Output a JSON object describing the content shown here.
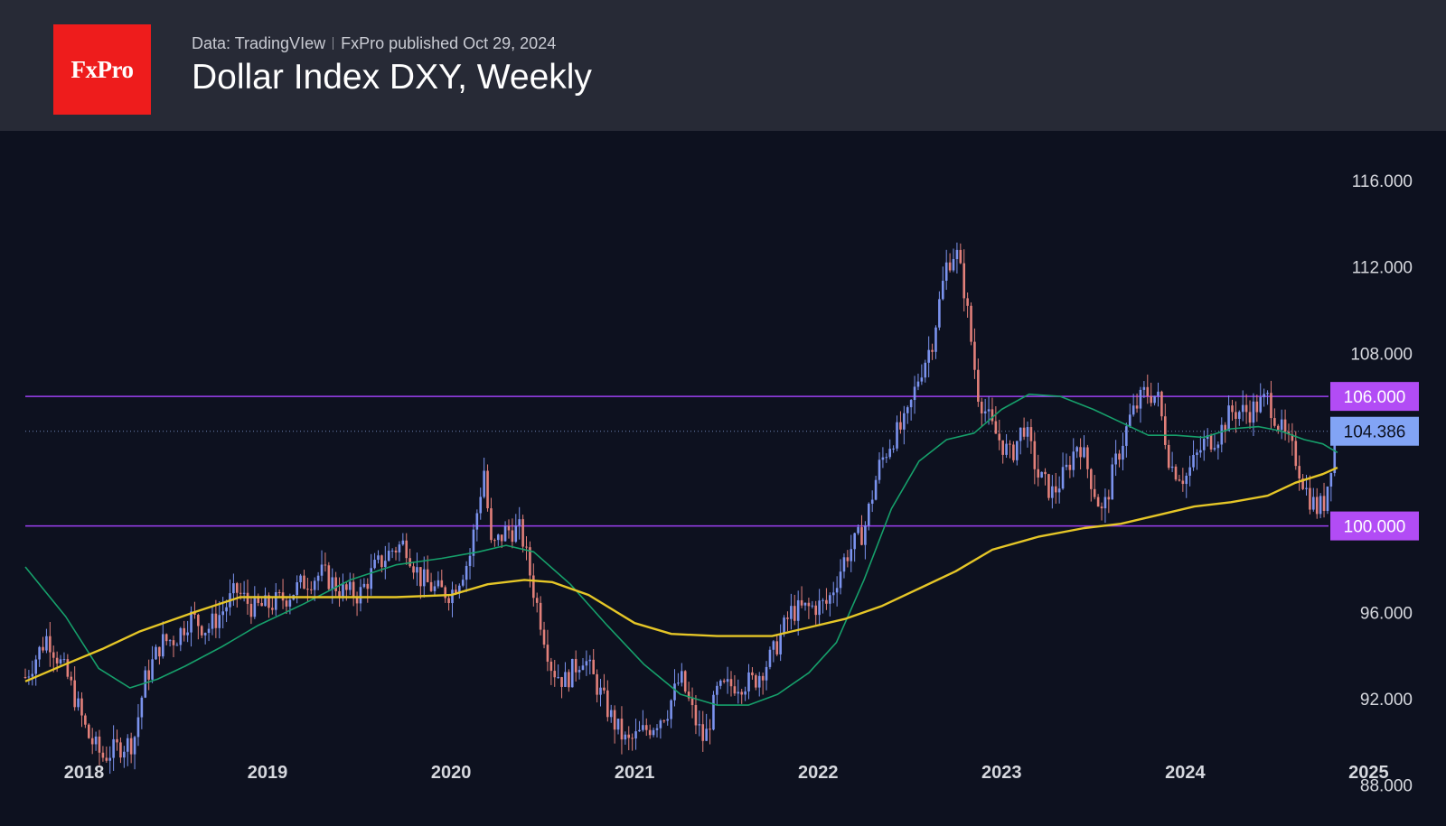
{
  "header": {
    "logo_text": "FxPro",
    "source": "Data: TradingVIew",
    "published": "FxPro published Oct 29, 2024",
    "title": "Dollar Index DXY, Weekly"
  },
  "colors": {
    "background": "#0d111f",
    "header_bg": "#272a36",
    "logo_red": "#ee1c1c",
    "candle_up": "#7b93ee",
    "candle_down": "#e2807a",
    "ma_fast": "#16a06b",
    "ma_slow": "#e5c627",
    "level_line": "#9c40f0",
    "level_tag": "#b24cf5",
    "last_price_tag": "#82a4f5"
  },
  "chart_data": {
    "type": "candlestick",
    "title": "Dollar Index DXY, Weekly",
    "x_range": [
      2017.68,
      2025.2
    ],
    "ylim": [
      86.1,
      118.3
    ],
    "y_ticks": [
      "116.000",
      "112.000",
      "108.000",
      "96.000",
      "92.000",
      "88.000"
    ],
    "x_ticks": [
      {
        "label": "2018",
        "t": 2018.0
      },
      {
        "label": "2019",
        "t": 2019.0
      },
      {
        "label": "2020",
        "t": 2020.0
      },
      {
        "label": "2021",
        "t": 2021.0
      },
      {
        "label": "2022",
        "t": 2022.0
      },
      {
        "label": "2023",
        "t": 2023.0
      },
      {
        "label": "2024",
        "t": 2024.0
      },
      {
        "label": "2025",
        "t": 2025.0
      }
    ],
    "horizontal_levels": [
      {
        "value": 106.0,
        "label": "106.000"
      },
      {
        "value": 100.0,
        "label": "100.000"
      }
    ],
    "last_price": {
      "value": 104.386,
      "label": "104.386"
    },
    "close_path": [
      [
        2017.68,
        93.0
      ],
      [
        2017.8,
        94.9
      ],
      [
        2017.92,
        92.8
      ],
      [
        2018.02,
        90.3
      ],
      [
        2018.1,
        89.3
      ],
      [
        2018.2,
        89.8
      ],
      [
        2018.27,
        90.0
      ],
      [
        2018.33,
        92.8
      ],
      [
        2018.42,
        94.6
      ],
      [
        2018.5,
        94.8
      ],
      [
        2018.58,
        95.8
      ],
      [
        2018.67,
        95.2
      ],
      [
        2018.75,
        96.0
      ],
      [
        2018.83,
        97.0
      ],
      [
        2018.92,
        96.2
      ],
      [
        2019.0,
        96.3
      ],
      [
        2019.1,
        96.7
      ],
      [
        2019.2,
        97.4
      ],
      [
        2019.3,
        97.8
      ],
      [
        2019.4,
        97.0
      ],
      [
        2019.5,
        96.8
      ],
      [
        2019.58,
        98.0
      ],
      [
        2019.68,
        98.9
      ],
      [
        2019.75,
        99.2
      ],
      [
        2019.83,
        97.6
      ],
      [
        2019.92,
        97.0
      ],
      [
        2020.0,
        96.9
      ],
      [
        2020.1,
        98.5
      ],
      [
        2020.18,
        102.6
      ],
      [
        2020.22,
        98.9
      ],
      [
        2020.3,
        99.8
      ],
      [
        2020.38,
        99.8
      ],
      [
        2020.45,
        97.0
      ],
      [
        2020.55,
        93.4
      ],
      [
        2020.62,
        92.8
      ],
      [
        2020.72,
        94.0
      ],
      [
        2020.8,
        92.5
      ],
      [
        2020.88,
        91.0
      ],
      [
        2020.96,
        89.9
      ],
      [
        2021.02,
        90.3
      ],
      [
        2021.1,
        90.8
      ],
      [
        2021.18,
        91.5
      ],
      [
        2021.25,
        93.0
      ],
      [
        2021.33,
        91.0
      ],
      [
        2021.38,
        90.0
      ],
      [
        2021.45,
        92.3
      ],
      [
        2021.55,
        92.7
      ],
      [
        2021.65,
        92.8
      ],
      [
        2021.75,
        94.0
      ],
      [
        2021.85,
        96.0
      ],
      [
        2021.95,
        96.2
      ],
      [
        2022.05,
        96.4
      ],
      [
        2022.15,
        98.6
      ],
      [
        2022.25,
        99.8
      ],
      [
        2022.33,
        102.7
      ],
      [
        2022.4,
        104.0
      ],
      [
        2022.48,
        104.8
      ],
      [
        2022.55,
        107.0
      ],
      [
        2022.62,
        108.5
      ],
      [
        2022.7,
        112.1
      ],
      [
        2022.75,
        112.8
      ],
      [
        2022.8,
        110.8
      ],
      [
        2022.87,
        106.2
      ],
      [
        2022.95,
        104.5
      ],
      [
        2023.05,
        103.2
      ],
      [
        2023.12,
        104.7
      ],
      [
        2023.2,
        102.3
      ],
      [
        2023.28,
        101.5
      ],
      [
        2023.35,
        102.5
      ],
      [
        2023.42,
        104.0
      ],
      [
        2023.5,
        101.8
      ],
      [
        2023.55,
        100.5
      ],
      [
        2023.62,
        102.9
      ],
      [
        2023.7,
        105.0
      ],
      [
        2023.78,
        106.2
      ],
      [
        2023.85,
        106.0
      ],
      [
        2023.92,
        102.8
      ],
      [
        2024.0,
        102.2
      ],
      [
        2024.1,
        103.8
      ],
      [
        2024.18,
        104.2
      ],
      [
        2024.25,
        105.3
      ],
      [
        2024.35,
        105.3
      ],
      [
        2024.45,
        105.9
      ],
      [
        2024.52,
        104.5
      ],
      [
        2024.6,
        103.2
      ],
      [
        2024.67,
        101.4
      ],
      [
        2024.72,
        100.8
      ],
      [
        2024.76,
        101.1
      ],
      [
        2024.8,
        103.2
      ],
      [
        2024.83,
        104.386
      ]
    ],
    "series": [
      {
        "type": "line",
        "points": [
          [
            2017.68,
            98.1
          ],
          [
            2017.9,
            95.8
          ],
          [
            2018.08,
            93.4
          ],
          [
            2018.25,
            92.5
          ],
          [
            2018.4,
            92.9
          ],
          [
            2018.55,
            93.5
          ],
          [
            2018.75,
            94.4
          ],
          [
            2018.95,
            95.4
          ],
          [
            2019.2,
            96.4
          ],
          [
            2019.45,
            97.5
          ],
          [
            2019.7,
            98.2
          ],
          [
            2019.95,
            98.5
          ],
          [
            2020.15,
            98.8
          ],
          [
            2020.3,
            99.1
          ],
          [
            2020.45,
            98.8
          ],
          [
            2020.65,
            97.3
          ],
          [
            2020.85,
            95.4
          ],
          [
            2021.05,
            93.6
          ],
          [
            2021.25,
            92.2
          ],
          [
            2021.45,
            91.7
          ],
          [
            2021.62,
            91.7
          ],
          [
            2021.78,
            92.2
          ],
          [
            2021.95,
            93.2
          ],
          [
            2022.1,
            94.6
          ],
          [
            2022.25,
            97.5
          ],
          [
            2022.4,
            100.8
          ],
          [
            2022.55,
            103.0
          ],
          [
            2022.7,
            104.0
          ],
          [
            2022.85,
            104.3
          ],
          [
            2023.0,
            105.4
          ],
          [
            2023.15,
            106.1
          ],
          [
            2023.32,
            106.0
          ],
          [
            2023.5,
            105.4
          ],
          [
            2023.65,
            104.8
          ],
          [
            2023.8,
            104.2
          ],
          [
            2023.95,
            104.2
          ],
          [
            2024.1,
            104.1
          ],
          [
            2024.25,
            104.5
          ],
          [
            2024.4,
            104.6
          ],
          [
            2024.52,
            104.4
          ],
          [
            2024.65,
            104.0
          ],
          [
            2024.75,
            103.8
          ],
          [
            2024.83,
            103.4
          ]
        ]
      },
      {
        "type": "line",
        "points": [
          [
            2017.68,
            92.8
          ],
          [
            2017.9,
            93.6
          ],
          [
            2018.1,
            94.3
          ],
          [
            2018.3,
            95.1
          ],
          [
            2018.6,
            96.0
          ],
          [
            2018.85,
            96.7
          ],
          [
            2019.1,
            96.7
          ],
          [
            2019.4,
            96.7
          ],
          [
            2019.7,
            96.7
          ],
          [
            2020.0,
            96.8
          ],
          [
            2020.2,
            97.3
          ],
          [
            2020.4,
            97.5
          ],
          [
            2020.55,
            97.4
          ],
          [
            2020.75,
            96.8
          ],
          [
            2021.0,
            95.5
          ],
          [
            2021.2,
            95.0
          ],
          [
            2021.45,
            94.9
          ],
          [
            2021.75,
            94.9
          ],
          [
            2021.95,
            95.3
          ],
          [
            2022.15,
            95.7
          ],
          [
            2022.35,
            96.3
          ],
          [
            2022.55,
            97.1
          ],
          [
            2022.75,
            97.9
          ],
          [
            2022.95,
            98.9
          ],
          [
            2023.2,
            99.5
          ],
          [
            2023.45,
            99.9
          ],
          [
            2023.65,
            100.1
          ],
          [
            2023.85,
            100.5
          ],
          [
            2024.05,
            100.9
          ],
          [
            2024.25,
            101.1
          ],
          [
            2024.45,
            101.4
          ],
          [
            2024.6,
            102.0
          ],
          [
            2024.75,
            102.4
          ],
          [
            2024.83,
            102.7
          ]
        ]
      }
    ]
  }
}
